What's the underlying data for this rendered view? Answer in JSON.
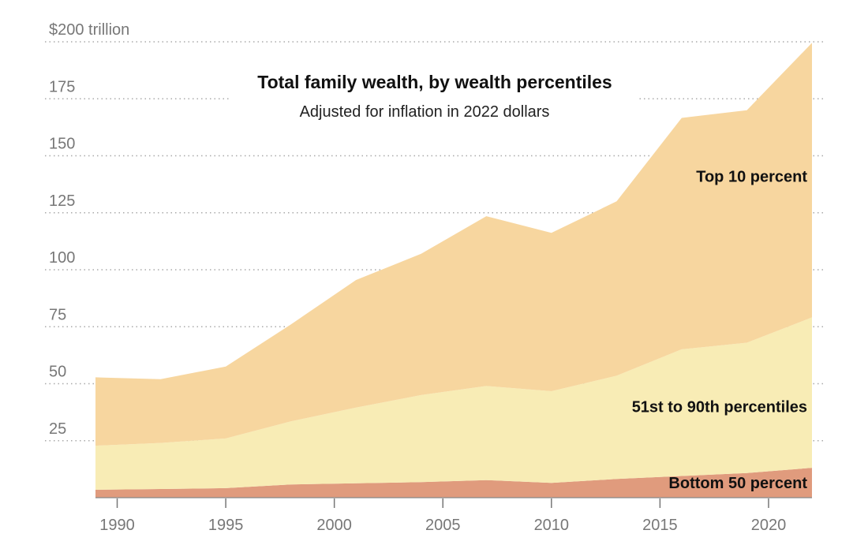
{
  "chart_data": {
    "type": "area",
    "stacked": true,
    "title": "Total family wealth, by wealth percentiles",
    "subtitle": "Adjusted for inflation in 2022 dollars",
    "x": [
      1989,
      1992,
      1995,
      1998,
      2001,
      2004,
      2007,
      2010,
      2013,
      2016,
      2019,
      2022
    ],
    "series": [
      {
        "name": "Bottom 50 percent",
        "color": "#e09b7d",
        "values": [
          3.5,
          3.8,
          4.2,
          5.8,
          6.3,
          6.8,
          7.7,
          6.5,
          8.2,
          9.5,
          10.8,
          13.1
        ]
      },
      {
        "name": "51st to 90th percentiles",
        "color": "#f8ecb5",
        "values": [
          19.3,
          20.2,
          21.8,
          27.7,
          33.2,
          38.2,
          41.3,
          40.2,
          45.3,
          55.6,
          57.2,
          66.0
        ]
      },
      {
        "name": "Top 10 percent",
        "color": "#f7d69f",
        "values": [
          30.0,
          28.0,
          31.5,
          42.5,
          56.0,
          62.0,
          74.5,
          69.5,
          76.5,
          101.5,
          102.0,
          120.4
        ]
      }
    ],
    "xlim": [
      1989,
      2022
    ],
    "ylim": [
      0,
      200
    ],
    "y_ticks": [
      25,
      50,
      75,
      100,
      125,
      150,
      175,
      200
    ],
    "y_tick_labels": [
      "25",
      "50",
      "75",
      "100",
      "125",
      "150",
      "175",
      "$200 trillion"
    ],
    "x_ticks": [
      1990,
      1995,
      2000,
      2005,
      2010,
      2015,
      2020
    ],
    "x_tick_labels": [
      "1990",
      "1995",
      "2000",
      "2005",
      "2010",
      "2015",
      "2020"
    ],
    "grid": true,
    "legend": "inline labels on right"
  }
}
